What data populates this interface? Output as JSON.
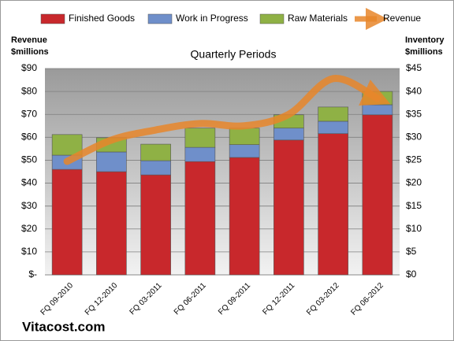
{
  "chart_data": {
    "type": "bar",
    "stacked": true,
    "title": "Quarterly Periods",
    "y_label": [
      "Revenue",
      "$millions"
    ],
    "y2_label": [
      "Inventory",
      "$millions"
    ],
    "annotation": "Vitacost.com",
    "categories": [
      "FQ 09-2010",
      "FQ 12-2010",
      "FQ 03-2011",
      "FQ 06-2011",
      "FQ 09-2011",
      "FQ 12-2011",
      "FQ 03-2012",
      "FQ 06-2012"
    ],
    "series": [
      {
        "name": "Finished Goods",
        "color": "#c8282c",
        "axis": "y2",
        "values": [
          23.0,
          22.5,
          21.8,
          24.7,
          25.6,
          29.4,
          30.8,
          34.9
        ]
      },
      {
        "name": "Work in Progress",
        "color": "#6f8fca",
        "axis": "y2",
        "values": [
          3.1,
          4.3,
          3.1,
          3.1,
          2.8,
          2.6,
          2.7,
          2.2
        ]
      },
      {
        "name": "Raw Materials",
        "color": "#8fb145",
        "axis": "y2",
        "values": [
          4.5,
          3.1,
          3.6,
          4.2,
          3.6,
          2.9,
          3.1,
          2.9
        ]
      },
      {
        "name": "Revenue",
        "color": "#e8862a",
        "axis": "y",
        "type": "line",
        "values": [
          49.5,
          58.8,
          63.2,
          66,
          65,
          70,
          85.6,
          77
        ]
      }
    ],
    "ylim": [
      0,
      90
    ],
    "yticks": [
      {
        "value": 0,
        "label": "$-"
      },
      {
        "value": 10,
        "label": "$10"
      },
      {
        "value": 20,
        "label": "$20"
      },
      {
        "value": 30,
        "label": "$30"
      },
      {
        "value": 40,
        "label": "$40"
      },
      {
        "value": 50,
        "label": "$50"
      },
      {
        "value": 60,
        "label": "$60"
      },
      {
        "value": 70,
        "label": "$70"
      },
      {
        "value": 80,
        "label": "$80"
      },
      {
        "value": 90,
        "label": "$90"
      }
    ],
    "y2lim": [
      0,
      45
    ],
    "y2ticks": [
      {
        "value": 0,
        "label": "$0"
      },
      {
        "value": 5,
        "label": "$5"
      },
      {
        "value": 10,
        "label": "$10"
      },
      {
        "value": 15,
        "label": "$15"
      },
      {
        "value": 20,
        "label": "$20"
      },
      {
        "value": 25,
        "label": "$25"
      },
      {
        "value": 30,
        "label": "$30"
      },
      {
        "value": 35,
        "label": "$35"
      },
      {
        "value": 40,
        "label": "$40"
      },
      {
        "value": 45,
        "label": "$45"
      }
    ],
    "grid": true
  }
}
